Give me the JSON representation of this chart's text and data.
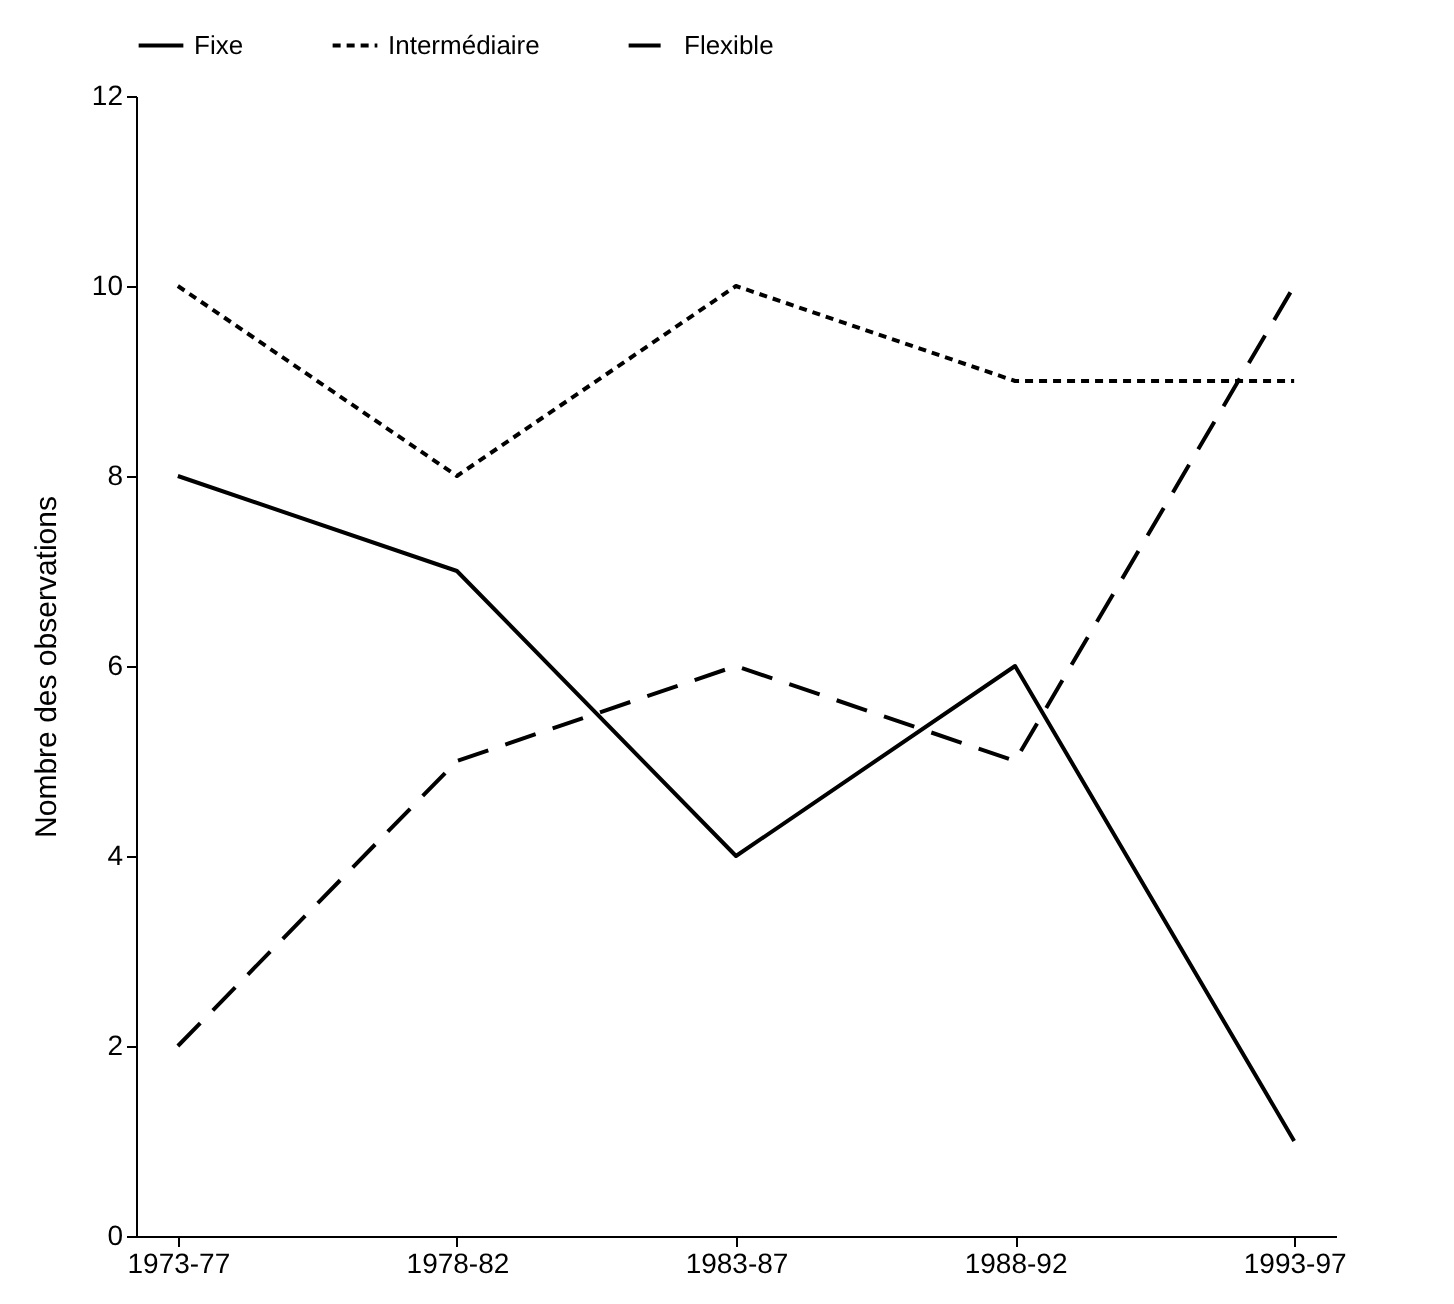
{
  "chart_data": {
    "type": "line",
    "categories": [
      "1973-77",
      "1978-82",
      "1983-87",
      "1988-92",
      "1993-97"
    ],
    "ylabel": "Nombre des observations",
    "ylim": [
      0,
      12
    ],
    "yticks": [
      0,
      2,
      4,
      6,
      8,
      10,
      12
    ],
    "grid": false,
    "legend": "top",
    "marker": "none",
    "series": [
      {
        "name": "Fixe",
        "color": "#000000",
        "line_style": "solid",
        "values": [
          8,
          7,
          4,
          6,
          1
        ]
      },
      {
        "name": "Intermédiaire",
        "color": "#000000",
        "line_style": "dotted",
        "values": [
          10,
          8,
          10,
          9,
          9
        ]
      },
      {
        "name": "Flexible",
        "color": "#000000",
        "line_style": "dashed",
        "values": [
          2,
          5,
          6,
          5,
          10
        ]
      }
    ]
  }
}
